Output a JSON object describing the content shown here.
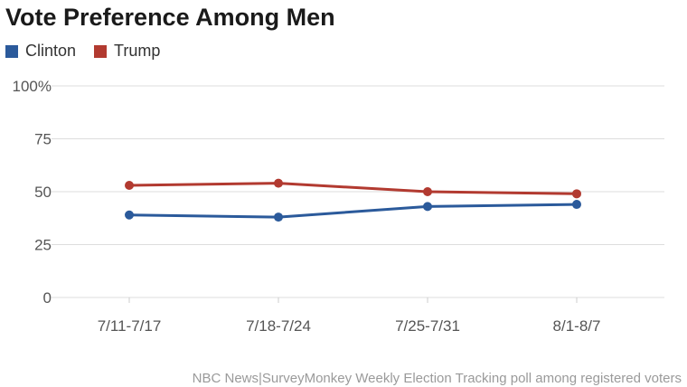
{
  "title": "Vote Preference Among Men",
  "source": "NBC News|SurveyMonkey Weekly Election Tracking poll among registered voters",
  "colors": {
    "clinton": "#2b5a9b",
    "trump": "#b23a30",
    "grid": "#dddddd",
    "tick_text": "#555555"
  },
  "chart_data": {
    "type": "line",
    "title": "Vote Preference Among Men",
    "xlabel": "",
    "ylabel": "",
    "categories": [
      "7/11-7/17",
      "7/18-7/24",
      "7/25-7/31",
      "8/1-8/7"
    ],
    "y_ticks": [
      "0",
      "25",
      "50",
      "75",
      "100%"
    ],
    "ylim": [
      0,
      100
    ],
    "grid": true,
    "legend": "top-left",
    "series": [
      {
        "name": "Clinton",
        "values": [
          39,
          38,
          43,
          44
        ],
        "color": "#2b5a9b"
      },
      {
        "name": "Trump",
        "values": [
          53,
          54,
          50,
          49
        ],
        "color": "#b23a30"
      }
    ]
  }
}
